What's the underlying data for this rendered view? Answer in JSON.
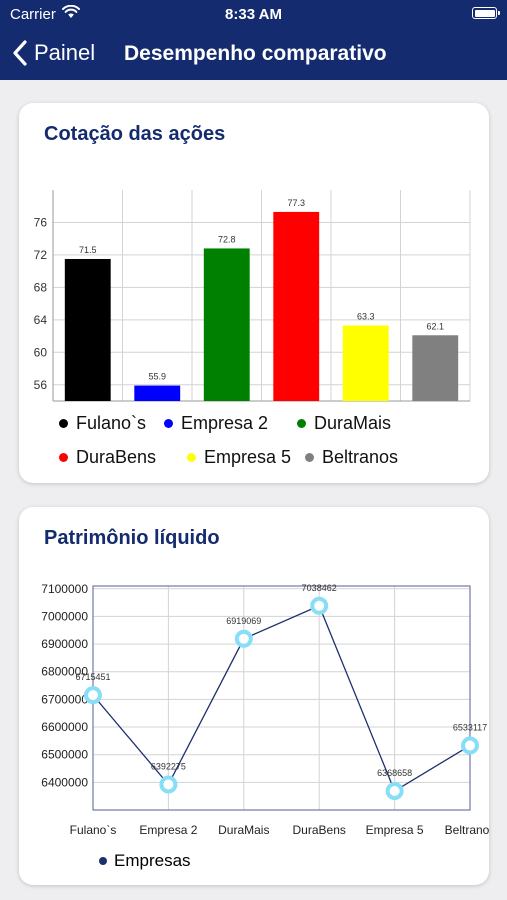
{
  "status_bar": {
    "carrier": "Carrier",
    "time": "8:33 AM"
  },
  "nav": {
    "back_label": "Painel",
    "title": "Desempenho comparativo"
  },
  "bar_chart": {
    "card_title": "Cotação das ações",
    "legend": [
      {
        "label": "Fulano`s",
        "color": "#000000"
      },
      {
        "label": "Empresa 2",
        "color": "#0000ff"
      },
      {
        "label": "DuraMais",
        "color": "#008000"
      },
      {
        "label": "DuraBens",
        "color": "#ff0000"
      },
      {
        "label": "Empresa 5",
        "color": "#ffff00"
      },
      {
        "label": "Beltranos",
        "color": "#808080"
      }
    ]
  },
  "line_chart": {
    "card_title": "Patrimônio líquido",
    "legend_label": "Empresas",
    "series_color": "#1d2f6f",
    "marker_color": "#86def7"
  },
  "chart_data": [
    {
      "type": "bar",
      "title": "Cotação das ações",
      "categories": [
        "Fulano`s",
        "Empresa 2",
        "DuraMais",
        "DuraBens",
        "Empresa 5",
        "Beltranos"
      ],
      "values": [
        71.5,
        55.9,
        72.8,
        77.3,
        63.3,
        62.1
      ],
      "data_labels": [
        "71.5",
        "55.9",
        "72.8",
        "77.3",
        "63.3",
        "62.1"
      ],
      "colors": [
        "#000000",
        "#0000ff",
        "#008000",
        "#ff0000",
        "#ffff00",
        "#808080"
      ],
      "ylim": [
        54,
        80
      ],
      "yticks": [
        56,
        60,
        64,
        68,
        72,
        76
      ],
      "grid": true,
      "legend_position": "bottom"
    },
    {
      "type": "line",
      "title": "Patrimônio líquido",
      "categories": [
        "Fulano`s",
        "Empresa 2",
        "DuraMais",
        "DuraBens",
        "Empresa 5",
        "Beltranos"
      ],
      "series": [
        {
          "name": "Empresas",
          "values": [
            6715451,
            6392275,
            6919069,
            7038462,
            6368658,
            6533117
          ]
        }
      ],
      "data_labels": [
        "6715451",
        "6392275",
        "6919069",
        "7038462",
        "6368658",
        "6533117"
      ],
      "ylim": [
        6300000,
        7110000
      ],
      "yticks": [
        6400000,
        6500000,
        6600000,
        6700000,
        6800000,
        6900000,
        7000000,
        7100000
      ],
      "grid": true,
      "legend_position": "bottom"
    }
  ]
}
